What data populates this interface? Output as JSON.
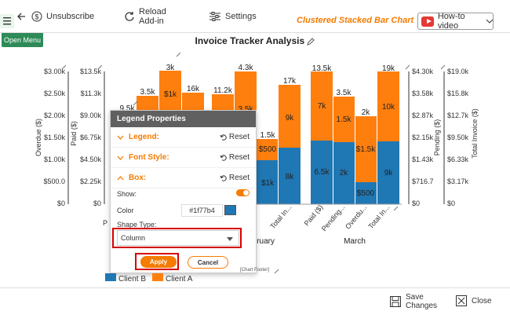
{
  "toolbar": {
    "unsubscribe": "Unsubscribe",
    "reload_line1": "Reload",
    "reload_line2": "Add-in",
    "settings": "Settings",
    "chart_type": "Clustered Stacked Bar Chart",
    "howto": "How-to video",
    "open_menu": "Open Menu"
  },
  "chart": {
    "title": "Invoice Tracker Analysis",
    "left_axes": [
      {
        "label": "Overdue ($)",
        "ticks": [
          "$3.00k",
          "$2.50k",
          "$2.00k",
          "$1.50k",
          "$1.00k",
          "$500.0",
          "$0"
        ]
      },
      {
        "label": "Paid ($)",
        "ticks": [
          "$13.5k",
          "$11.3k",
          "$9.00k",
          "$6.75k",
          "$4.50k",
          "$2.25k",
          "$0"
        ]
      }
    ],
    "right_axes": [
      {
        "label": "Pending ($)",
        "ticks": [
          "$4.30k",
          "$3.58k",
          "$2.87k",
          "$2.15k",
          "$1.43k",
          "$716.7",
          "$0"
        ]
      },
      {
        "label": "Total Invoice ($)",
        "ticks": [
          "$19.0k",
          "$15.8k",
          "$12.7k",
          "$9.50k",
          "$6.33k",
          "$3.17k",
          "$0"
        ]
      }
    ],
    "months": [
      "February",
      "March"
    ],
    "partial_left_label": "P",
    "feb_cat_label": "Total In...",
    "mar_cats": [
      "Paid ($)",
      "Pending...",
      "Overdu...",
      "Total In..."
    ],
    "bar_labels": {
      "top_left": [
        "9.5k",
        "3.5k",
        "3k",
        "16k",
        "11.2k",
        "4.3k"
      ],
      "mid_left": [
        "$1k",
        "3.5k"
      ],
      "feb_labels": [
        "1.5k",
        "$500",
        "17k",
        "9k",
        "$1k",
        "8k"
      ],
      "mar_top": [
        "13.5k",
        "3.5k",
        "2k",
        "19k"
      ],
      "mar_orange": [
        "7k",
        "1.5k",
        "$1.5k",
        "10k"
      ],
      "mar_blue": [
        "6.5k",
        "2k",
        "$500",
        "9k"
      ]
    }
  },
  "legend_series": [
    "Client B",
    "Client A"
  ],
  "colors": {
    "client_a": "#ff7f0e",
    "client_b": "#1f77b4",
    "accent": "#f57c00"
  },
  "panel": {
    "title": "Legend Properties",
    "sections": [
      {
        "label": "Legend:",
        "reset": "Reset"
      },
      {
        "label": "Font Style:",
        "reset": "Reset"
      },
      {
        "label": "Box:",
        "reset": "Reset"
      }
    ],
    "show_label": "Show:",
    "color_label": "Color",
    "color_value": "#1f77b4",
    "shape_label": "Shape Type:",
    "shape_value": "Column",
    "apply": "Apply",
    "cancel": "Cancel"
  },
  "footer_note": "[Chart Footer]",
  "bottom": {
    "save": "Save Changes",
    "close": "Close"
  }
}
